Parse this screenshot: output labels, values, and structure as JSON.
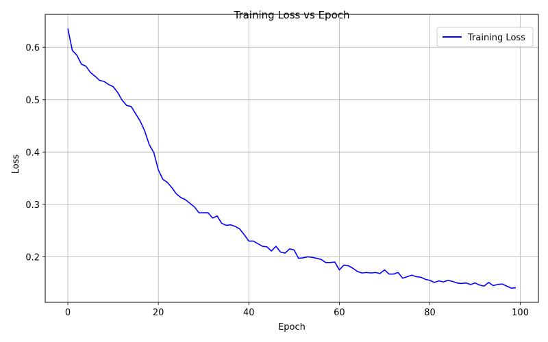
{
  "chart_data": {
    "type": "line",
    "title": "Training Loss vs Epoch",
    "xlabel": "Epoch",
    "ylabel": "Loss",
    "xlim": [
      -5,
      104
    ],
    "ylim": [
      0.113,
      0.663
    ],
    "x_ticks": [
      0,
      20,
      40,
      60,
      80,
      100
    ],
    "y_ticks": [
      0.2,
      0.3,
      0.4,
      0.5,
      0.6
    ],
    "x_tick_labels": [
      "0",
      "20",
      "40",
      "60",
      "80",
      "100"
    ],
    "y_tick_labels": [
      "0.2",
      "0.3",
      "0.4",
      "0.5",
      "0.6"
    ],
    "grid": true,
    "legend_position": "top-right",
    "series": [
      {
        "name": "Training Loss",
        "color": "#0000ff",
        "x": [
          0,
          1,
          2,
          3,
          4,
          5,
          6,
          7,
          8,
          9,
          10,
          11,
          12,
          13,
          14,
          15,
          16,
          17,
          18,
          19,
          20,
          21,
          22,
          23,
          24,
          25,
          26,
          27,
          28,
          29,
          30,
          31,
          32,
          33,
          34,
          35,
          36,
          37,
          38,
          39,
          40,
          41,
          42,
          43,
          44,
          45,
          46,
          47,
          48,
          49,
          50,
          51,
          52,
          53,
          54,
          55,
          56,
          57,
          58,
          59,
          60,
          61,
          62,
          63,
          64,
          65,
          66,
          67,
          68,
          69,
          70,
          71,
          72,
          73,
          74,
          75,
          76,
          77,
          78,
          79,
          80,
          81,
          82,
          83,
          84,
          85,
          86,
          87,
          88,
          89,
          90,
          91,
          92,
          93,
          94,
          95,
          96,
          97,
          98,
          99
        ],
        "values": [
          0.636,
          0.594,
          0.585,
          0.568,
          0.564,
          0.552,
          0.545,
          0.537,
          0.535,
          0.529,
          0.525,
          0.514,
          0.499,
          0.489,
          0.487,
          0.473,
          0.459,
          0.44,
          0.414,
          0.399,
          0.366,
          0.348,
          0.342,
          0.332,
          0.32,
          0.313,
          0.309,
          0.302,
          0.295,
          0.284,
          0.284,
          0.284,
          0.274,
          0.278,
          0.264,
          0.26,
          0.261,
          0.258,
          0.253,
          0.242,
          0.23,
          0.23,
          0.225,
          0.22,
          0.219,
          0.211,
          0.22,
          0.209,
          0.207,
          0.215,
          0.213,
          0.197,
          0.198,
          0.2,
          0.199,
          0.197,
          0.195,
          0.189,
          0.189,
          0.19,
          0.175,
          0.184,
          0.183,
          0.178,
          0.172,
          0.169,
          0.17,
          0.169,
          0.17,
          0.168,
          0.175,
          0.167,
          0.167,
          0.17,
          0.159,
          0.162,
          0.165,
          0.162,
          0.161,
          0.157,
          0.155,
          0.151,
          0.154,
          0.152,
          0.155,
          0.153,
          0.15,
          0.149,
          0.15,
          0.147,
          0.15,
          0.146,
          0.144,
          0.151,
          0.145,
          0.147,
          0.148,
          0.144,
          0.14,
          0.141
        ]
      }
    ]
  }
}
